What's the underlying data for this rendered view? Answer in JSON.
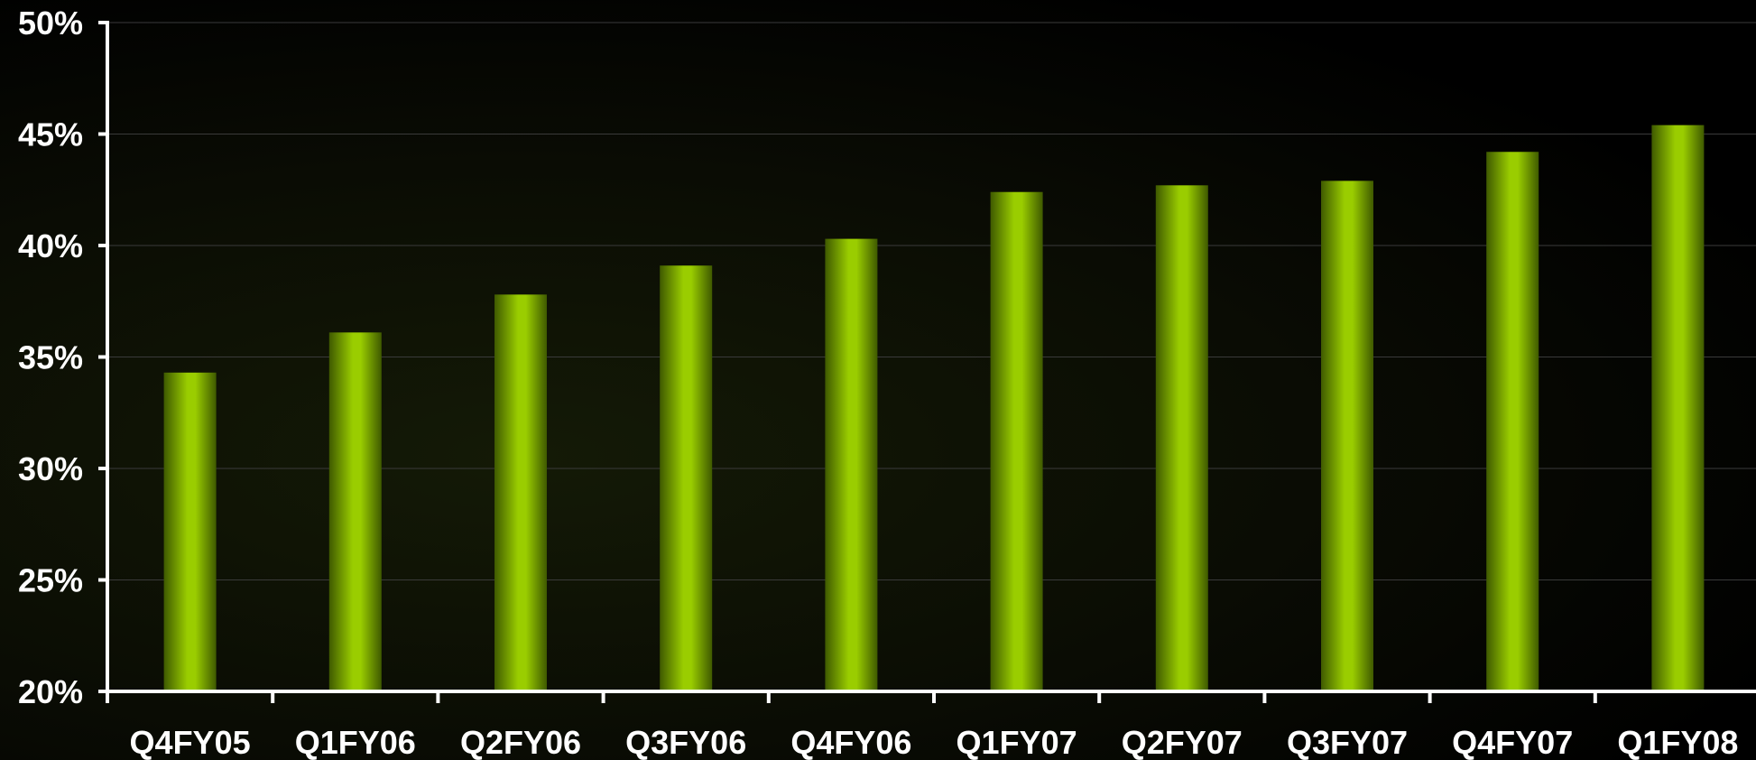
{
  "chart_data": {
    "type": "bar",
    "title": "",
    "xlabel": "",
    "ylabel": "",
    "categories": [
      "Q4FY05",
      "Q1FY06",
      "Q2FY06",
      "Q3FY06",
      "Q4FY06",
      "Q1FY07",
      "Q2FY07",
      "Q3FY07",
      "Q4FY07",
      "Q1FY08"
    ],
    "values": [
      34.3,
      36.1,
      37.8,
      39.1,
      40.3,
      42.4,
      42.7,
      42.9,
      44.2,
      45.4
    ],
    "ylim": [
      20,
      50
    ],
    "yticks": [
      20,
      25,
      30,
      35,
      40,
      45,
      50
    ],
    "ytick_labels": [
      "20%",
      "25%",
      "30%",
      "35%",
      "40%",
      "45%",
      "50%"
    ],
    "grid": true,
    "legend": "none",
    "bar_color": "#9acd00",
    "bar_edge_color": "#3f5a00",
    "axis_color": "#ffffff",
    "grid_color": "#3a3a3a",
    "text_color": "#ffffff"
  }
}
